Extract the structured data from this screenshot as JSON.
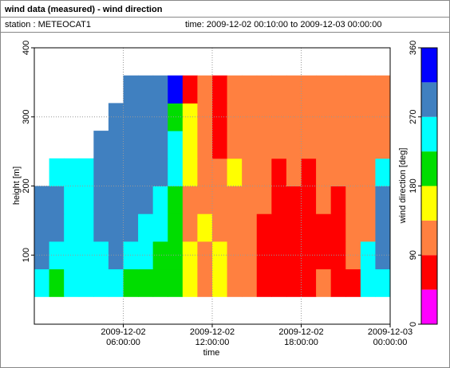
{
  "header": {
    "title": "wind data (measured) - wind direction",
    "station": "station : METEOCAT1",
    "time": "time: 2009-12-02 00:10:00 to 2009-12-03 00:00:00"
  },
  "chart_data": {
    "type": "heatmap",
    "xlabel": "time",
    "ylabel": "height [m]",
    "colorbar_label": "wind direction [deg]",
    "x": [
      0.5,
      1.5,
      2.5,
      3.5,
      4.5,
      5.5,
      6.5,
      7.5,
      8.5,
      9.5,
      10.5,
      11.5,
      12.5,
      13.5,
      14.5,
      15.5,
      16.5,
      17.5,
      18.5,
      19.5,
      20.5,
      21.5,
      22.5,
      23.5
    ],
    "y": [
      60,
      100,
      140,
      180,
      220,
      260,
      300,
      340
    ],
    "z": [
      [
        250,
        200,
        250,
        250,
        250,
        250,
        200,
        200,
        200,
        200,
        160,
        110,
        160,
        110,
        110,
        70,
        70,
        70,
        70,
        110,
        70,
        70,
        250,
        250
      ],
      [
        290,
        250,
        250,
        250,
        250,
        290,
        250,
        250,
        200,
        200,
        160,
        110,
        160,
        110,
        110,
        70,
        70,
        70,
        70,
        70,
        70,
        110,
        250,
        290
      ],
      [
        290,
        290,
        250,
        250,
        290,
        290,
        290,
        250,
        250,
        200,
        110,
        160,
        110,
        110,
        110,
        70,
        70,
        70,
        70,
        70,
        70,
        110,
        110,
        290
      ],
      [
        290,
        290,
        250,
        250,
        290,
        290,
        290,
        290,
        250,
        200,
        110,
        110,
        110,
        110,
        110,
        110,
        70,
        70,
        70,
        110,
        70,
        110,
        110,
        290
      ],
      [
        null,
        250,
        250,
        250,
        290,
        290,
        290,
        290,
        290,
        250,
        160,
        110,
        110,
        160,
        110,
        110,
        70,
        110,
        70,
        110,
        110,
        110,
        110,
        250
      ],
      [
        null,
        null,
        null,
        null,
        290,
        290,
        290,
        290,
        290,
        250,
        160,
        110,
        70,
        110,
        110,
        110,
        110,
        110,
        110,
        110,
        110,
        110,
        110,
        110
      ],
      [
        null,
        null,
        null,
        null,
        null,
        290,
        290,
        290,
        290,
        200,
        160,
        110,
        70,
        110,
        110,
        110,
        110,
        110,
        110,
        110,
        110,
        110,
        110,
        110
      ],
      [
        null,
        null,
        null,
        null,
        null,
        null,
        290,
        290,
        290,
        330,
        70,
        110,
        70,
        110,
        110,
        110,
        110,
        110,
        110,
        110,
        110,
        110,
        110,
        110
      ]
    ],
    "xlim": [
      0,
      24
    ],
    "xticks": [
      {
        "value": 6,
        "label": "2009-12-02 06:00:00"
      },
      {
        "value": 12,
        "label": "2009-12-02 12:00:00"
      },
      {
        "value": 18,
        "label": "2009-12-02 18:00:00"
      },
      {
        "value": 24,
        "label": "2009-12-03 00:00:00"
      }
    ],
    "ylim": [
      0,
      400
    ],
    "yticks": [
      100,
      200,
      300,
      400
    ],
    "clim": [
      0,
      360
    ],
    "cticks": [
      0,
      90,
      180,
      270,
      360
    ],
    "color_bounds": [
      0,
      45,
      90,
      135,
      180,
      225,
      270,
      315,
      360
    ],
    "colors": [
      "#ff00ff",
      "#ff0000",
      "#ff8040",
      "#ffff00",
      "#00dd00",
      "#00ffff",
      "#4080c0",
      "#0000ff"
    ],
    "grid": true
  }
}
